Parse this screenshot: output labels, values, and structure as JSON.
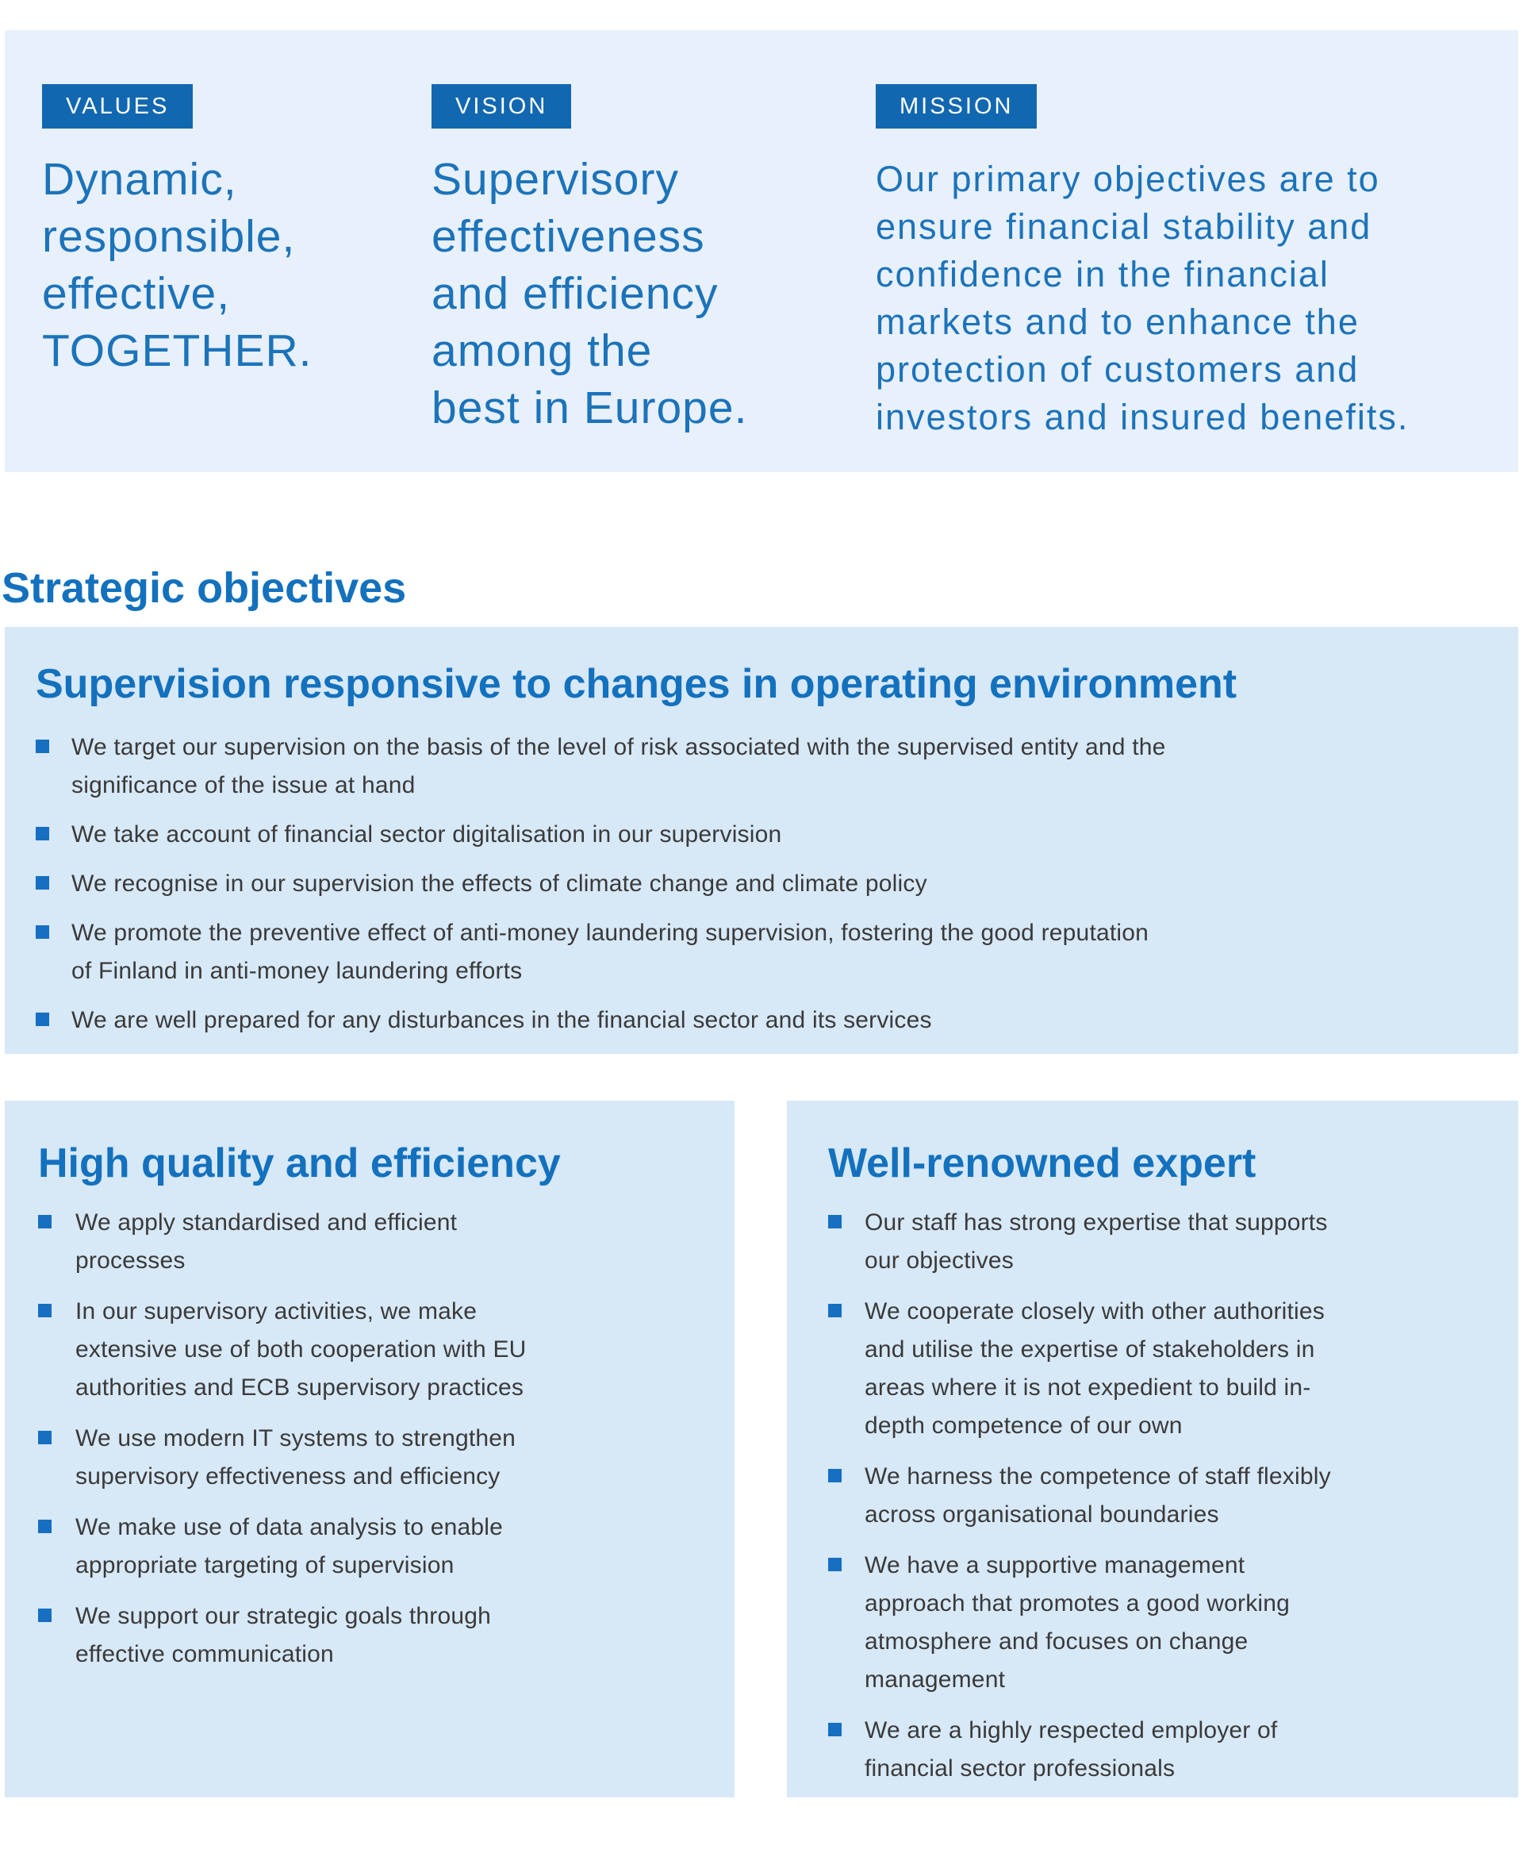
{
  "colors": {
    "top_panel_bg": "#e7f0fb",
    "panel_bg": "#d7e8f7",
    "chip_bg": "#1268b0",
    "chip_text": "#ffffff",
    "statement_text": "#1c73b9",
    "heading_text": "#1371bd",
    "bullet_square": "#176fc1",
    "body_text": "#3a3a3a"
  },
  "top_panel": {
    "cards": [
      {
        "label": "VALUES",
        "text": "Dynamic,\nresponsible,\neffective,\nTOGETHER."
      },
      {
        "label": "VISION",
        "text": "Supervisory\neffectiveness\nand efficiency\namong the\nbest in Europe."
      },
      {
        "label": "MISSION",
        "text": "Our primary objectives are to\nensure financial stability and\nconfidence in the financial\nmarkets and to enhance the\nprotection of customers and\ninvestors and insured benefits."
      }
    ]
  },
  "section_title": "Strategic objectives",
  "panels": [
    {
      "title": "Supervision responsive to changes in operating environment",
      "bullets": [
        "We target our supervision on the basis of the level of risk associated with the supervised entity and the\nsignificance of the issue at hand",
        "We take account of financial sector digitalisation in our supervision",
        "We recognise in our supervision the effects of climate change and climate policy",
        "We promote the preventive effect of anti-money laundering supervision, fostering the good reputation\nof Finland in anti-money laundering efforts",
        "We are well prepared for any disturbances in the financial sector and its services"
      ]
    },
    {
      "title": "High quality and efficiency",
      "bullets": [
        "We apply standardised and efficient\nprocesses",
        "In our supervisory activities, we make\nextensive use of both cooperation with EU\nauthorities and ECB supervisory practices",
        "We use modern IT systems to strengthen\nsupervisory effectiveness and efficiency",
        "We make use of data analysis to enable\nappropriate targeting of supervision",
        "We support our strategic goals through\neffective communication"
      ]
    },
    {
      "title": "Well-renowned expert",
      "bullets": [
        "Our staff has strong expertise that supports\nour objectives",
        "We cooperate closely with other authorities\nand utilise the expertise of stakeholders in\nareas where it is not expedient to build in-\ndepth competence of our own",
        "We harness the competence of staff flexibly\nacross organisational boundaries",
        "We have a supportive management\napproach that promotes a good working\natmosphere and focuses on change\nmanagement",
        "We are a highly respected employer of\nfinancial sector professionals"
      ]
    }
  ]
}
